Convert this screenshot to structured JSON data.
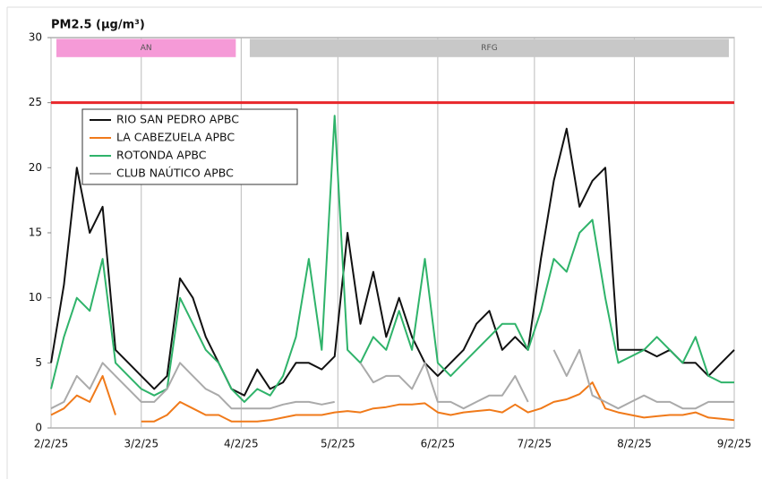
{
  "chart_data": {
    "type": "line",
    "title": "PM2.5 (µg/m³)",
    "x": [
      0,
      4,
      8,
      12,
      16,
      20,
      24,
      28,
      32,
      36,
      40,
      44,
      48,
      52,
      56,
      60,
      64,
      68,
      72,
      76,
      80,
      84,
      88,
      92,
      96,
      100,
      104,
      108,
      112,
      116,
      120,
      124,
      128,
      132,
      136,
      140,
      144,
      148,
      152,
      156,
      160,
      164,
      168,
      172,
      176,
      180,
      184,
      188,
      192,
      196,
      200,
      204,
      208,
      212
    ],
    "xlim": [
      0,
      212
    ],
    "xticks": [
      {
        "value": 0,
        "label": "2/2/25"
      },
      {
        "value": 28,
        "label": "3/2/25"
      },
      {
        "value": 59,
        "label": "4/2/25"
      },
      {
        "value": 89,
        "label": "5/2/25"
      },
      {
        "value": 120,
        "label": "6/2/25"
      },
      {
        "value": 150,
        "label": "7/2/25"
      },
      {
        "value": 181,
        "label": "8/2/25"
      },
      {
        "value": 212,
        "label": "9/2/25"
      }
    ],
    "ylim": [
      0,
      30
    ],
    "yticks": [
      0,
      5,
      10,
      15,
      20,
      25,
      30
    ],
    "grid": "x",
    "legend": "upper left",
    "threshold": {
      "value": 25,
      "color": "#e8262a"
    },
    "bands": [
      {
        "label": "AN",
        "start": 0,
        "end": 59,
        "color": "#f59ad7"
      },
      {
        "label": "RFG",
        "start": 60,
        "end": 212,
        "color": "#c8c8c8"
      }
    ],
    "band_ylim": [
      28.5,
      29.9
    ],
    "series": [
      {
        "name": "RIO SAN PEDRO APBC",
        "color": "#111111",
        "values": [
          5,
          11,
          20,
          15,
          17,
          6,
          5,
          4,
          3,
          4,
          11.5,
          10,
          7,
          5,
          3,
          2.5,
          4.5,
          3,
          3.5,
          5,
          5,
          4.5,
          5.5,
          15,
          8,
          12,
          7,
          10,
          7,
          5,
          4,
          5,
          6,
          8,
          9,
          6,
          7,
          6,
          13,
          19,
          23,
          17,
          19,
          20,
          6,
          6,
          6,
          5.5,
          6,
          5,
          5,
          4,
          5,
          6
        ]
      },
      {
        "name": "LA CABEZUELA  APBC",
        "color": "#f07a1a",
        "values": [
          1,
          1.5,
          2.5,
          2,
          4,
          1,
          null,
          0.5,
          0.5,
          1,
          2,
          1.5,
          1,
          1,
          0.5,
          0.5,
          0.5,
          0.6,
          0.8,
          1,
          1,
          1,
          1.2,
          1.3,
          1.2,
          1.5,
          1.6,
          1.8,
          1.8,
          1.9,
          1.2,
          1,
          1.2,
          1.3,
          1.4,
          1.2,
          1.8,
          1.2,
          1.5,
          2,
          2.2,
          2.6,
          3.5,
          1.5,
          1.2,
          1,
          0.8,
          0.9,
          1,
          1,
          1.2,
          0.8,
          0.7,
          0.6
        ]
      },
      {
        "name": "ROTONDA  APBC",
        "color": "#2fb36a",
        "values": [
          3,
          7,
          10,
          9,
          13,
          5,
          4,
          3,
          2.5,
          3,
          10,
          8,
          6,
          5,
          3,
          2,
          3,
          2.5,
          4,
          7,
          13,
          6,
          24,
          6,
          5,
          7,
          6,
          9,
          6,
          13,
          5,
          4,
          5,
          6,
          7,
          8,
          8,
          6,
          9,
          13,
          12,
          15,
          16,
          10,
          5,
          5.5,
          6,
          7,
          6,
          5,
          7,
          4,
          3.5,
          3.5
        ]
      },
      {
        "name": "CLUB NAÚTICO  APBC",
        "color": "#aaaaaa",
        "values": [
          1.5,
          2,
          4,
          3,
          5,
          4,
          3,
          2,
          2,
          3,
          5,
          4,
          3,
          2.5,
          1.5,
          1.5,
          1.5,
          1.5,
          1.8,
          2,
          2,
          1.8,
          2,
          null,
          5,
          3.5,
          4,
          4,
          3,
          5,
          2,
          2,
          1.5,
          2,
          2.5,
          2.5,
          4,
          2,
          null,
          6,
          4,
          6,
          2.5,
          2,
          1.5,
          2,
          2.5,
          2,
          2,
          1.5,
          1.5,
          2,
          2,
          2
        ]
      }
    ]
  }
}
